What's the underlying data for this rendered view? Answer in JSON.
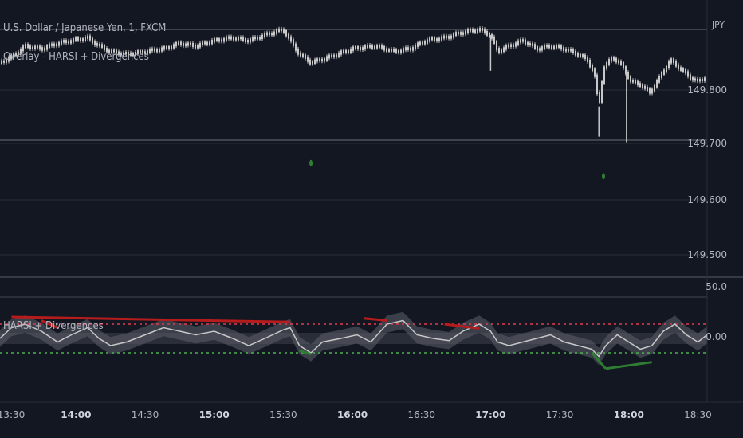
{
  "header": {
    "symbol_title": "U.S. Dollar / Japanese Yen, 1, FXCM",
    "overlay_title": "Overlay - HARSI + Divergences",
    "currency": "JPY"
  },
  "oscillator_title": "HARSI + Divergences",
  "colors": {
    "background": "#131722",
    "grid": "#2a2e39",
    "candle": "#c8c8c8",
    "bull_div": "#2e7d32",
    "bear_div": "#b71c1c",
    "ob_line": "#e53950",
    "os_line": "#4caf50",
    "rsi_band": "#5d606b",
    "rsi_line": "#c8c8c8",
    "signal_dot": "#2e7d32"
  },
  "chart_data": [
    {
      "type": "candlestick",
      "title": "U.S. Dollar / Japanese Yen, 1, FXCM",
      "ylabel": "JPY",
      "y_ticks": [
        "149.800",
        "149.700",
        "149.600",
        "149.500"
      ],
      "ylim": [
        149.455,
        149.985
      ],
      "x_ticks": [
        "13:30",
        "14:00",
        "14:30",
        "15:00",
        "15:30",
        "16:00",
        "16:30",
        "17:00",
        "17:30",
        "18:00",
        "18:30"
      ],
      "x_range": [
        "13:27",
        "18:34"
      ],
      "price_path": [
        [
          "13:27",
          149.85
        ],
        [
          "13:32",
          149.86
        ],
        [
          "13:38",
          149.88
        ],
        [
          "13:45",
          149.875
        ],
        [
          "13:52",
          149.885
        ],
        [
          "13:58",
          149.89
        ],
        [
          "14:05",
          149.895
        ],
        [
          "14:10",
          149.88
        ],
        [
          "14:15",
          149.87
        ],
        [
          "14:22",
          149.865
        ],
        [
          "14:30",
          149.87
        ],
        [
          "14:38",
          149.875
        ],
        [
          "14:45",
          149.885
        ],
        [
          "14:52",
          149.88
        ],
        [
          "15:00",
          149.89
        ],
        [
          "15:08",
          149.895
        ],
        [
          "15:15",
          149.89
        ],
        [
          "15:22",
          149.9
        ],
        [
          "15:30",
          149.91
        ],
        [
          "15:33",
          149.89
        ],
        [
          "15:37",
          149.865
        ],
        [
          "15:42",
          149.85
        ],
        [
          "15:50",
          149.86
        ],
        [
          "16:00",
          149.875
        ],
        [
          "16:10",
          149.88
        ],
        [
          "16:18",
          149.87
        ],
        [
          "16:25",
          149.875
        ],
        [
          "16:32",
          149.89
        ],
        [
          "16:40",
          149.895
        ],
        [
          "16:48",
          149.905
        ],
        [
          "16:55",
          149.91
        ],
        [
          "17:00",
          149.9
        ],
        [
          "17:03",
          149.87
        ],
        [
          "17:08",
          149.88
        ],
        [
          "17:14",
          149.89
        ],
        [
          "17:20",
          149.875
        ],
        [
          "17:26",
          149.88
        ],
        [
          "17:32",
          149.875
        ],
        [
          "17:38",
          149.865
        ],
        [
          "17:42",
          149.855
        ],
        [
          "17:45",
          149.83
        ],
        [
          "17:47",
          149.77
        ],
        [
          "17:49",
          149.84
        ],
        [
          "17:53",
          149.86
        ],
        [
          "17:57",
          149.845
        ],
        [
          "18:01",
          149.815
        ],
        [
          "18:05",
          149.81
        ],
        [
          "18:09",
          149.795
        ],
        [
          "18:13",
          149.82
        ],
        [
          "18:18",
          149.855
        ],
        [
          "18:22",
          149.84
        ],
        [
          "18:26",
          149.825
        ],
        [
          "18:30",
          149.815
        ],
        [
          "18:34",
          149.825
        ]
      ],
      "wicks": [
        {
          "time": "17:00",
          "low": 149.835
        },
        {
          "time": "17:47",
          "low": 149.715
        },
        {
          "time": "17:59",
          "low": 149.705
        }
      ],
      "signal_markers": [
        {
          "time": "15:42",
          "price": 149.667
        },
        {
          "time": "17:49",
          "price": 149.643
        }
      ]
    },
    {
      "type": "line",
      "title": "HARSI + Divergences",
      "y_ticks": [
        "50.0",
        "0.00"
      ],
      "overbought_level": 20,
      "oversold_level": -20,
      "x_range": [
        "13:27",
        "18:34"
      ],
      "rsi": [
        [
          "13:27",
          0
        ],
        [
          "13:32",
          15
        ],
        [
          "13:38",
          20
        ],
        [
          "13:45",
          10
        ],
        [
          "13:52",
          -5
        ],
        [
          "13:58",
          5
        ],
        [
          "14:05",
          15
        ],
        [
          "14:10",
          0
        ],
        [
          "14:15",
          -10
        ],
        [
          "14:22",
          -5
        ],
        [
          "14:30",
          5
        ],
        [
          "14:38",
          15
        ],
        [
          "14:45",
          10
        ],
        [
          "14:52",
          5
        ],
        [
          "15:00",
          10
        ],
        [
          "15:08",
          0
        ],
        [
          "15:15",
          -10
        ],
        [
          "15:22",
          0
        ],
        [
          "15:30",
          12
        ],
        [
          "15:33",
          15
        ],
        [
          "15:37",
          -10
        ],
        [
          "15:42",
          -20
        ],
        [
          "15:47",
          -5
        ],
        [
          "15:55",
          0
        ],
        [
          "16:02",
          5
        ],
        [
          "16:08",
          -5
        ],
        [
          "16:15",
          20
        ],
        [
          "16:22",
          25
        ],
        [
          "16:28",
          5
        ],
        [
          "16:35",
          0
        ],
        [
          "16:42",
          -3
        ],
        [
          "16:48",
          10
        ],
        [
          "16:55",
          20
        ],
        [
          "17:00",
          10
        ],
        [
          "17:03",
          -5
        ],
        [
          "17:08",
          -10
        ],
        [
          "17:14",
          -5
        ],
        [
          "17:20",
          0
        ],
        [
          "17:26",
          5
        ],
        [
          "17:32",
          -5
        ],
        [
          "17:38",
          -10
        ],
        [
          "17:44",
          -15
        ],
        [
          "17:47",
          -25
        ],
        [
          "17:50",
          -10
        ],
        [
          "17:55",
          5
        ],
        [
          "18:00",
          -5
        ],
        [
          "18:05",
          -15
        ],
        [
          "18:10",
          -10
        ],
        [
          "18:15",
          10
        ],
        [
          "18:20",
          20
        ],
        [
          "18:25",
          5
        ],
        [
          "18:30",
          -5
        ],
        [
          "18:34",
          5
        ]
      ],
      "band_half_width": 12,
      "divergences": [
        {
          "kind": "bearish",
          "from": [
            "13:32",
            30
          ],
          "to": [
            "15:33",
            23
          ]
        },
        {
          "kind": "bearish",
          "from": [
            "13:45",
            25
          ],
          "to": [
            "13:52",
            15
          ]
        },
        {
          "kind": "bearish",
          "from": [
            "16:05",
            28
          ],
          "to": [
            "16:15",
            25
          ]
        },
        {
          "kind": "bearish",
          "from": [
            "16:40",
            20
          ],
          "to": [
            "16:55",
            14
          ]
        },
        {
          "kind": "bullish",
          "from": [
            "15:37",
            -17
          ],
          "to": [
            "15:42",
            -22
          ]
        },
        {
          "kind": "bullish",
          "from": [
            "17:50",
            -42
          ],
          "to": [
            "18:10",
            -33
          ]
        },
        {
          "kind": "bullish",
          "from": [
            "17:44",
            -20
          ],
          "to": [
            "17:50",
            -42
          ]
        }
      ]
    }
  ]
}
